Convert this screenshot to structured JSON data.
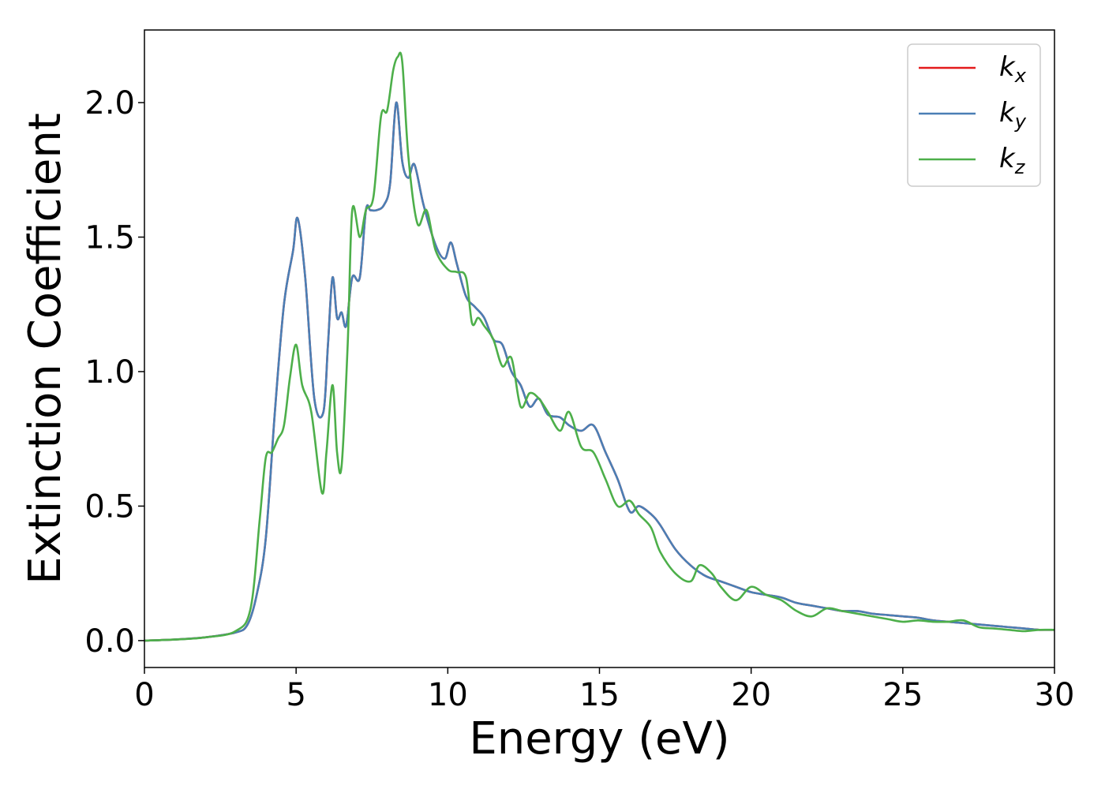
{
  "chart_data": {
    "type": "line",
    "xlabel": "Energy (eV)",
    "ylabel": "Extinction Coefficient",
    "xlim": [
      0,
      30
    ],
    "ylim": [
      -0.1,
      2.27
    ],
    "xticks": [
      0,
      5,
      10,
      15,
      20,
      25,
      30
    ],
    "xtick_labels": [
      "0",
      "5",
      "10",
      "15",
      "20",
      "25",
      "30"
    ],
    "yticks": [
      0.0,
      0.5,
      1.0,
      1.5,
      2.0
    ],
    "ytick_labels": [
      "0.0",
      "0.5",
      "1.0",
      "1.5",
      "2.0"
    ],
    "grid": false,
    "legend_position": "top-right",
    "series": [
      {
        "name": "k_x",
        "label_base": "k",
        "label_sub": "x",
        "color": "#e41a1c",
        "x": [
          0,
          1,
          2,
          3,
          3.4,
          3.7,
          4.0,
          4.3,
          4.6,
          4.9,
          5.05,
          5.3,
          5.6,
          5.9,
          6.05,
          6.2,
          6.35,
          6.5,
          6.65,
          6.85,
          7.1,
          7.3,
          7.45,
          7.65,
          7.9,
          8.1,
          8.3,
          8.5,
          8.7,
          8.9,
          9.2,
          9.6,
          9.9,
          10.1,
          10.3,
          10.6,
          10.9,
          11.2,
          11.5,
          11.8,
          12.1,
          12.4,
          12.7,
          13.0,
          13.3,
          13.7,
          14.0,
          14.4,
          14.8,
          15.2,
          15.6,
          16.0,
          16.3,
          16.7,
          17.0,
          17.5,
          18.0,
          18.5,
          19.0,
          19.5,
          20.0,
          20.5,
          21.0,
          21.5,
          22.0,
          22.5,
          23.0,
          23.5,
          24.0,
          24.5,
          25.0,
          25.5,
          26.0,
          26.5,
          27.0,
          27.5,
          28.0,
          28.5,
          29.0,
          29.5,
          30.0
        ],
        "y": [
          0,
          0.004,
          0.012,
          0.03,
          0.06,
          0.17,
          0.38,
          0.85,
          1.25,
          1.45,
          1.57,
          1.35,
          0.9,
          0.85,
          1.1,
          1.35,
          1.2,
          1.22,
          1.17,
          1.35,
          1.35,
          1.6,
          1.6,
          1.6,
          1.62,
          1.7,
          2.0,
          1.78,
          1.72,
          1.77,
          1.62,
          1.47,
          1.42,
          1.48,
          1.4,
          1.28,
          1.24,
          1.2,
          1.12,
          1.1,
          1.0,
          0.95,
          0.87,
          0.9,
          0.84,
          0.83,
          0.8,
          0.78,
          0.8,
          0.7,
          0.6,
          0.48,
          0.5,
          0.47,
          0.43,
          0.34,
          0.28,
          0.24,
          0.22,
          0.2,
          0.18,
          0.17,
          0.16,
          0.14,
          0.13,
          0.12,
          0.11,
          0.11,
          0.1,
          0.095,
          0.09,
          0.085,
          0.075,
          0.07,
          0.065,
          0.06,
          0.055,
          0.05,
          0.045,
          0.04,
          0.04
        ]
      },
      {
        "name": "k_y",
        "label_base": "k",
        "label_sub": "y",
        "color": "#4a7fb5",
        "x": [
          0,
          1,
          2,
          3,
          3.4,
          3.7,
          4.0,
          4.3,
          4.6,
          4.9,
          5.05,
          5.3,
          5.6,
          5.9,
          6.05,
          6.2,
          6.35,
          6.5,
          6.65,
          6.85,
          7.1,
          7.3,
          7.45,
          7.65,
          7.9,
          8.1,
          8.3,
          8.5,
          8.7,
          8.9,
          9.2,
          9.6,
          9.9,
          10.1,
          10.3,
          10.6,
          10.9,
          11.2,
          11.5,
          11.8,
          12.1,
          12.4,
          12.7,
          13.0,
          13.3,
          13.7,
          14.0,
          14.4,
          14.8,
          15.2,
          15.6,
          16.0,
          16.3,
          16.7,
          17.0,
          17.5,
          18.0,
          18.5,
          19.0,
          19.5,
          20.0,
          20.5,
          21.0,
          21.5,
          22.0,
          22.5,
          23.0,
          23.5,
          24.0,
          24.5,
          25.0,
          25.5,
          26.0,
          26.5,
          27.0,
          27.5,
          28.0,
          28.5,
          29.0,
          29.5,
          30.0
        ],
        "y": [
          0,
          0.004,
          0.012,
          0.03,
          0.06,
          0.17,
          0.38,
          0.85,
          1.25,
          1.45,
          1.57,
          1.35,
          0.9,
          0.85,
          1.1,
          1.35,
          1.2,
          1.22,
          1.17,
          1.35,
          1.35,
          1.6,
          1.6,
          1.6,
          1.62,
          1.7,
          2.0,
          1.78,
          1.72,
          1.77,
          1.62,
          1.47,
          1.42,
          1.48,
          1.4,
          1.28,
          1.24,
          1.2,
          1.12,
          1.1,
          1.0,
          0.95,
          0.87,
          0.9,
          0.84,
          0.83,
          0.8,
          0.78,
          0.8,
          0.7,
          0.6,
          0.48,
          0.5,
          0.47,
          0.43,
          0.34,
          0.28,
          0.24,
          0.22,
          0.2,
          0.18,
          0.17,
          0.16,
          0.14,
          0.13,
          0.12,
          0.11,
          0.11,
          0.1,
          0.095,
          0.09,
          0.085,
          0.075,
          0.07,
          0.065,
          0.06,
          0.055,
          0.05,
          0.045,
          0.04,
          0.04
        ]
      },
      {
        "name": "k_z",
        "label_base": "k",
        "label_sub": "z",
        "color": "#4daf4a",
        "x": [
          0,
          1,
          2,
          3,
          3.5,
          3.8,
          4.0,
          4.2,
          4.4,
          4.6,
          4.8,
          5.0,
          5.2,
          5.5,
          5.85,
          6.0,
          6.2,
          6.35,
          6.5,
          6.7,
          6.85,
          7.1,
          7.3,
          7.55,
          7.8,
          8.0,
          8.2,
          8.35,
          8.5,
          8.7,
          9.0,
          9.3,
          9.6,
          10.0,
          10.3,
          10.6,
          10.8,
          11.0,
          11.2,
          11.5,
          11.8,
          12.1,
          12.4,
          12.7,
          13.0,
          13.3,
          13.7,
          14.0,
          14.4,
          14.8,
          15.2,
          15.6,
          16.0,
          16.3,
          16.7,
          17.0,
          17.5,
          18.0,
          18.3,
          18.7,
          19.0,
          19.5,
          20.0,
          20.5,
          21.0,
          21.5,
          22.0,
          22.5,
          23.0,
          23.5,
          24.0,
          24.5,
          25.0,
          25.5,
          26.0,
          26.5,
          27.0,
          27.5,
          28.0,
          28.5,
          29.0,
          29.5,
          30.0
        ],
        "y": [
          0,
          0.004,
          0.012,
          0.035,
          0.12,
          0.45,
          0.68,
          0.7,
          0.75,
          0.8,
          0.98,
          1.1,
          0.95,
          0.85,
          0.55,
          0.7,
          0.95,
          0.7,
          0.65,
          1.1,
          1.6,
          1.5,
          1.6,
          1.65,
          1.95,
          1.97,
          2.12,
          2.17,
          2.15,
          1.8,
          1.55,
          1.6,
          1.45,
          1.38,
          1.37,
          1.35,
          1.18,
          1.2,
          1.17,
          1.12,
          1.02,
          1.05,
          0.87,
          0.92,
          0.9,
          0.85,
          0.78,
          0.85,
          0.72,
          0.7,
          0.6,
          0.5,
          0.52,
          0.47,
          0.42,
          0.33,
          0.25,
          0.22,
          0.28,
          0.25,
          0.2,
          0.15,
          0.2,
          0.17,
          0.15,
          0.11,
          0.09,
          0.12,
          0.11,
          0.1,
          0.09,
          0.08,
          0.07,
          0.075,
          0.07,
          0.07,
          0.075,
          0.05,
          0.045,
          0.04,
          0.035,
          0.04,
          0.04
        ]
      }
    ]
  }
}
